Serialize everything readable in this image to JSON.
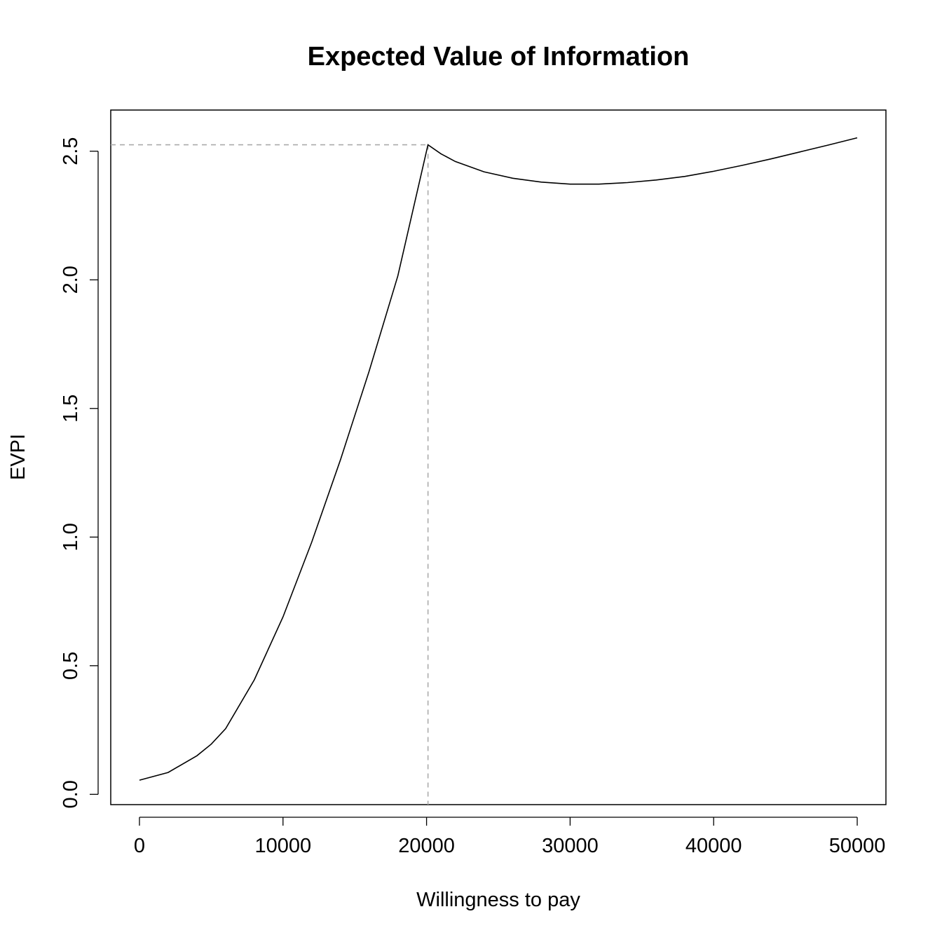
{
  "chart_data": {
    "type": "line",
    "title": "Expected Value of Information",
    "xlabel": "Willingness to pay",
    "ylabel": "EVPI",
    "xlim": [
      -2000,
      52000
    ],
    "ylim": [
      -0.04,
      2.66
    ],
    "xticks": [
      0,
      10000,
      20000,
      30000,
      40000,
      50000
    ],
    "xtick_labels": [
      "0",
      "10000",
      "20000",
      "30000",
      "40000",
      "50000"
    ],
    "yticks": [
      0.0,
      0.5,
      1.0,
      1.5,
      2.0,
      2.5
    ],
    "ytick_labels": [
      "0.0",
      "0.5",
      "1.0",
      "1.5",
      "2.0",
      "2.5"
    ],
    "grid": false,
    "legend": "none",
    "colors": {
      "line": "#000000",
      "guide": "#aaaaaa"
    },
    "series": [
      {
        "x": [
          0,
          2000,
          4000,
          5000,
          6000,
          8000,
          10000,
          12000,
          14000,
          16000,
          18000,
          20100,
          21000,
          22000,
          24000,
          26000,
          28000,
          30000,
          32000,
          34000,
          36000,
          38000,
          40000,
          42000,
          44000,
          46000,
          48000,
          50000
        ],
        "y": [
          0.055,
          0.085,
          0.15,
          0.195,
          0.255,
          0.445,
          0.69,
          0.98,
          1.3,
          1.645,
          2.015,
          2.525,
          2.49,
          2.46,
          2.42,
          2.395,
          2.38,
          2.372,
          2.372,
          2.378,
          2.388,
          2.402,
          2.422,
          2.445,
          2.47,
          2.497,
          2.524,
          2.552
        ]
      }
    ],
    "reference_lines": [
      {
        "x": 20100,
        "y": 2.525,
        "style": "dashed"
      }
    ]
  }
}
